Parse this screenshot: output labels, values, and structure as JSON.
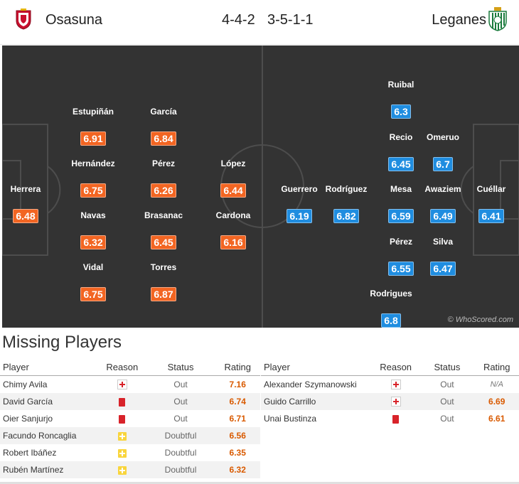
{
  "header": {
    "home_team": "Osasuna",
    "home_formation": "4-4-2",
    "away_formation": "3-5-1-1",
    "away_team": "Leganes"
  },
  "colors": {
    "home_rating": "#f26522",
    "away_rating": "#1f8de0",
    "pitch": "#333333"
  },
  "home_players": [
    {
      "name": "Herrera",
      "rating": "6.48"
    },
    {
      "name": "Estupiñán",
      "rating": "6.91"
    },
    {
      "name": "Hernández",
      "rating": "6.75"
    },
    {
      "name": "Navas",
      "rating": "6.32"
    },
    {
      "name": "Vidal",
      "rating": "6.75"
    },
    {
      "name": "García",
      "rating": "6.84"
    },
    {
      "name": "Pérez",
      "rating": "6.26"
    },
    {
      "name": "Brasanac",
      "rating": "6.45"
    },
    {
      "name": "Torres",
      "rating": "6.87"
    },
    {
      "name": "López",
      "rating": "6.44"
    },
    {
      "name": "Cardona",
      "rating": "6.16"
    }
  ],
  "away_players": [
    {
      "name": "Guerrero",
      "rating": "6.19"
    },
    {
      "name": "Rodríguez",
      "rating": "6.82"
    },
    {
      "name": "Ruibal",
      "rating": "6.3"
    },
    {
      "name": "Recio",
      "rating": "6.45"
    },
    {
      "name": "Mesa",
      "rating": "6.59"
    },
    {
      "name": "Pérez",
      "rating": "6.55"
    },
    {
      "name": "Rodrigues",
      "rating": "6.8"
    },
    {
      "name": "Omeruo",
      "rating": "6.7"
    },
    {
      "name": "Awaziem",
      "rating": "6.49"
    },
    {
      "name": "Silva",
      "rating": "6.47"
    },
    {
      "name": "Cuéllar",
      "rating": "6.41"
    }
  ],
  "watermark": "© WhoScored.com",
  "missing": {
    "title": "Missing Players",
    "columns": {
      "player": "Player",
      "reason": "Reason",
      "status": "Status",
      "rating": "Rating"
    },
    "home": [
      {
        "player": "Chimy Avila",
        "reason": "injury",
        "status": "Out",
        "rating": "7.16"
      },
      {
        "player": "David García",
        "reason": "red-card",
        "status": "Out",
        "rating": "6.74"
      },
      {
        "player": "Oier Sanjurjo",
        "reason": "red-card",
        "status": "Out",
        "rating": "6.71"
      },
      {
        "player": "Facundo Roncaglia",
        "reason": "doubtful",
        "status": "Doubtful",
        "rating": "6.56"
      },
      {
        "player": "Robert Ibáñez",
        "reason": "doubtful",
        "status": "Doubtful",
        "rating": "6.35"
      },
      {
        "player": "Rubén Martínez",
        "reason": "doubtful",
        "status": "Doubtful",
        "rating": "6.32"
      }
    ],
    "away": [
      {
        "player": "Alexander Szymanowski",
        "reason": "injury",
        "status": "Out",
        "rating": "N/A"
      },
      {
        "player": "Guido Carrillo",
        "reason": "injury",
        "status": "Out",
        "rating": "6.69"
      },
      {
        "player": "Unai Bustinza",
        "reason": "red-card",
        "status": "Out",
        "rating": "6.61"
      }
    ]
  }
}
